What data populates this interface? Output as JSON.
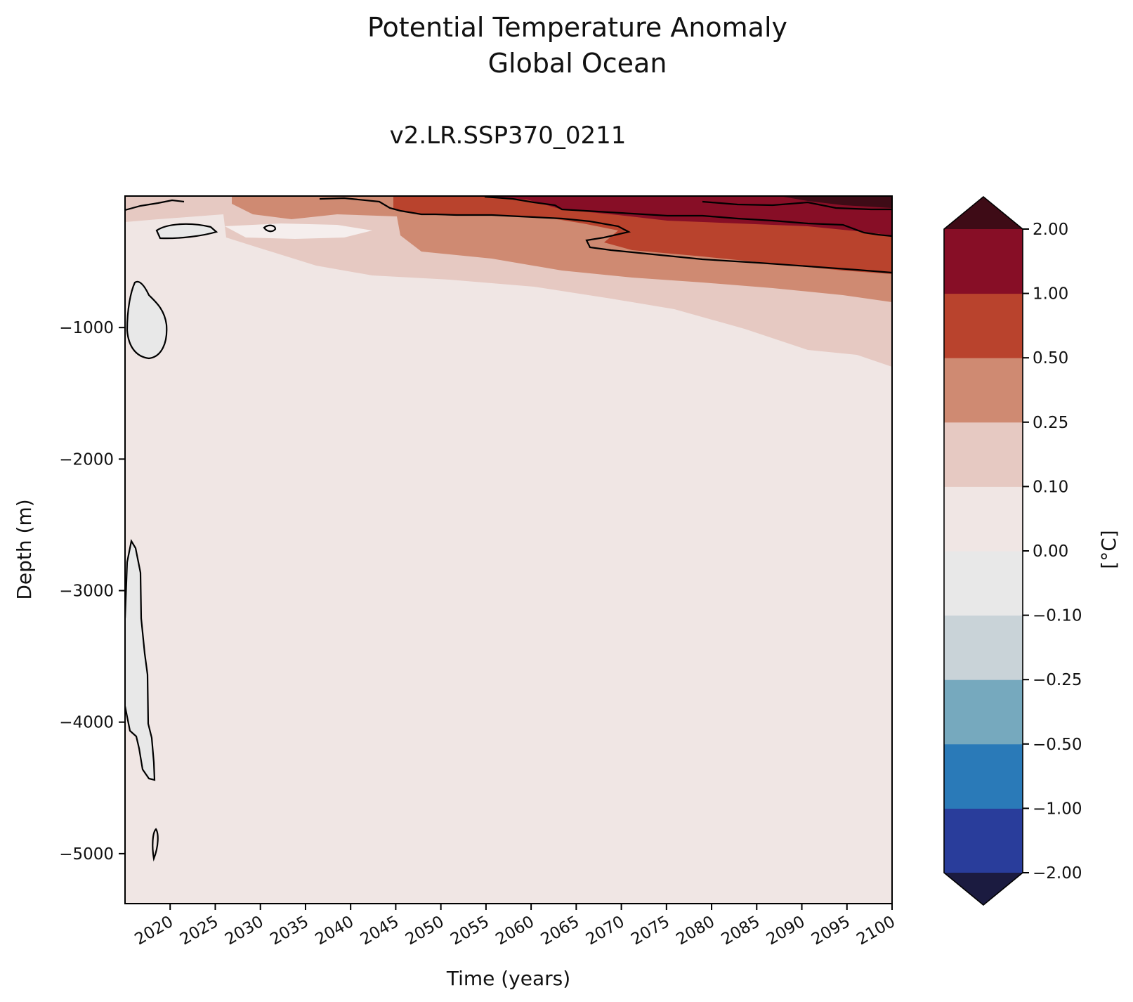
{
  "chart_data": {
    "type": "heatmap",
    "title": [
      "Potential Temperature Anomaly",
      "Global Ocean"
    ],
    "subtitle": "v2.LR.SSP370_0211",
    "xlabel": "Time (years)",
    "ylabel": "Depth (m)",
    "xlim": [
      2015,
      2100
    ],
    "ylim": [
      -5380,
      0
    ],
    "x_ticks": [
      "2020",
      "2025",
      "2030",
      "2035",
      "2040",
      "2045",
      "2050",
      "2055",
      "2060",
      "2065",
      "2070",
      "2075",
      "2080",
      "2085",
      "2090",
      "2095",
      "2100"
    ],
    "x_tick_values": [
      2020,
      2025,
      2030,
      2035,
      2040,
      2045,
      2050,
      2055,
      2060,
      2065,
      2070,
      2075,
      2080,
      2085,
      2090,
      2095,
      2100
    ],
    "y_ticks": [
      "−1000",
      "−2000",
      "−3000",
      "−4000",
      "−5000"
    ],
    "y_tick_values": [
      -1000,
      -2000,
      -3000,
      -4000,
      -5000
    ],
    "colorbar": {
      "label": "[°C]",
      "levels": [
        "−2.00",
        "−1.00",
        "−0.50",
        "−0.25",
        "−0.10",
        "0.00",
        "0.10",
        "0.25",
        "0.50",
        "1.00",
        "2.00"
      ],
      "level_values": [
        -2,
        -1,
        -0.5,
        -0.25,
        -0.1,
        0,
        0.1,
        0.25,
        0.5,
        1,
        2
      ],
      "colors": [
        "#293d9b",
        "#2a7ab8",
        "#76a9be",
        "#c9d3d8",
        "#e8e8e8",
        "#f0e6e4",
        "#e6c9c2",
        "#cf8a72",
        "#b9432d",
        "#870e26"
      ],
      "under_color": "#1b1b40",
      "over_color": "#3e0b16",
      "extend": "both"
    },
    "background_value_band": "0.00 to 0.10",
    "contour_levels": [
      -0.1,
      0.5,
      1.0,
      2.0
    ],
    "regions": [
      {
        "band": "0.10 to 0.25",
        "extent": "upper ocean, deepening from about -400 m in 2030 to about -1300 m in 2100"
      },
      {
        "band": "0.25 to 0.50",
        "extent": "from 2045 onward, deepening to about -800 m in 2100"
      },
      {
        "band": "0.50 to 1.00",
        "extent": "from 2050 onward, deepening to about -600 m in 2100"
      },
      {
        "band": "1.00 to 2.00",
        "extent": "surface layer from 2060 onward, deepening to about -300 m in 2100"
      },
      {
        "band": "above 2.00",
        "extent": "shallow surface layer after 2093"
      },
      {
        "band": "-0.10 to 0.00",
        "extent": "patches near 2015-2020 at -700 to -1200 m and -2600 to -4400 m"
      }
    ]
  }
}
